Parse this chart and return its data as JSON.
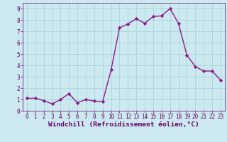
{
  "x": [
    0,
    1,
    2,
    3,
    4,
    5,
    6,
    7,
    8,
    9,
    10,
    11,
    12,
    13,
    14,
    15,
    16,
    17,
    18,
    19,
    20,
    21,
    22,
    23
  ],
  "y": [
    1.1,
    1.1,
    0.9,
    0.6,
    1.0,
    1.5,
    0.7,
    1.0,
    0.85,
    0.8,
    3.6,
    7.3,
    7.65,
    8.1,
    7.7,
    8.3,
    8.35,
    9.0,
    7.7,
    4.9,
    3.9,
    3.5,
    3.5,
    2.7
  ],
  "line_color": "#8b1a8b",
  "marker": "D",
  "markersize": 2.2,
  "linewidth": 1.0,
  "background_color": "#cce9f0",
  "grid_color": "#aad4de",
  "xlabel": "Windchill (Refroidissement éolien,°C)",
  "xlim": [
    -0.5,
    23.5
  ],
  "ylim": [
    0,
    9.5
  ],
  "yticks": [
    0,
    1,
    2,
    3,
    4,
    5,
    6,
    7,
    8,
    9
  ],
  "xticks": [
    0,
    1,
    2,
    3,
    4,
    5,
    6,
    7,
    8,
    9,
    10,
    11,
    12,
    13,
    14,
    15,
    16,
    17,
    18,
    19,
    20,
    21,
    22,
    23
  ],
  "tick_fontsize": 5.5,
  "xlabel_fontsize": 6.8,
  "axis_label_color": "#660066"
}
